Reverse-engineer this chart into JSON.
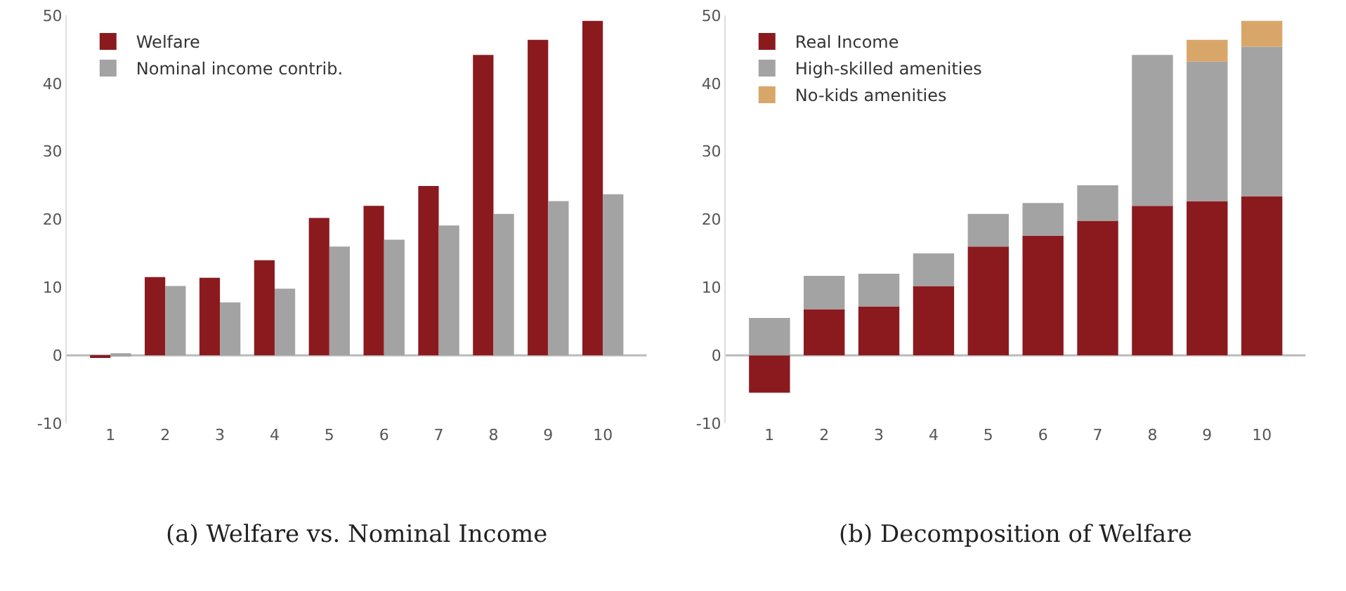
{
  "chart_data": [
    {
      "type": "bar",
      "title": "(a) Welfare vs. Nominal Income",
      "categories": [
        "1",
        "2",
        "3",
        "4",
        "5",
        "6",
        "7",
        "8",
        "9",
        "10"
      ],
      "series": [
        {
          "name": "Welfare",
          "color": "#8b1a1f",
          "values": [
            -0.2,
            11.5,
            11.4,
            14,
            20.2,
            22,
            24.9,
            44.2,
            46.4,
            49.2
          ]
        },
        {
          "name": "Nominal income contrib.",
          "color": "#a3a3a3",
          "values": [
            0.3,
            10.2,
            7.8,
            9.8,
            16,
            17,
            19.1,
            20.8,
            22.7,
            23.7
          ]
        }
      ],
      "ylim": [
        -10,
        50
      ],
      "yticks": [
        -10,
        0,
        10,
        20,
        30,
        40,
        50
      ],
      "grid": false,
      "legend": "top left",
      "ref_lines": [
        {
          "axis": "y",
          "value": 0,
          "color": "#bbbbbb"
        }
      ]
    },
    {
      "type": "bar",
      "stacked": true,
      "title": "(b) Decomposition of Welfare",
      "categories": [
        "1",
        "2",
        "3",
        "4",
        "5",
        "6",
        "7",
        "8",
        "9",
        "10"
      ],
      "series": [
        {
          "name": "Real Income",
          "color": "#8b1a1f",
          "values": [
            -5.5,
            6.8,
            7.2,
            10.2,
            16,
            17.6,
            19.8,
            22,
            22.7,
            23.4
          ]
        },
        {
          "name": "High-skilled amenities",
          "color": "#a3a3a3",
          "values": [
            5.5,
            4.9,
            4.8,
            4.8,
            4.8,
            4.8,
            5.2,
            22.2,
            20.5,
            22
          ]
        },
        {
          "name": "No-kids amenities",
          "color": "#d9a66a",
          "values": [
            0,
            0,
            0,
            0,
            0,
            0,
            0,
            0,
            3.2,
            3.8
          ]
        }
      ],
      "ylim": [
        -10,
        50
      ],
      "yticks": [
        -10,
        0,
        10,
        20,
        30,
        40,
        50
      ],
      "grid": false,
      "legend": "top left",
      "ref_lines": [
        {
          "axis": "y",
          "value": 0,
          "color": "#bbbbbb"
        }
      ]
    }
  ]
}
